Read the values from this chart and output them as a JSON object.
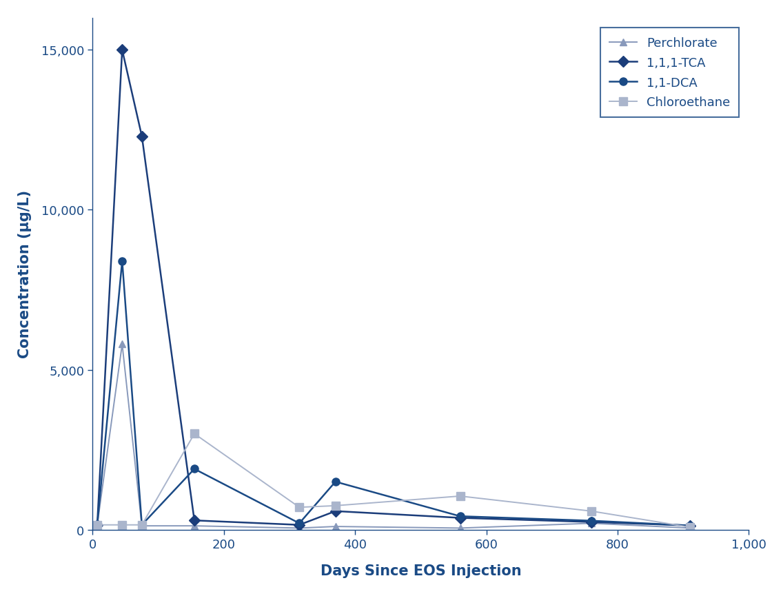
{
  "perchlorate": {
    "x": [
      7,
      45,
      75,
      155,
      315,
      370,
      560,
      760,
      910
    ],
    "y": [
      150,
      5800,
      120,
      120,
      50,
      100,
      50,
      200,
      50
    ],
    "color": "#8899bb",
    "marker": "^",
    "markersize": 7,
    "label": "Perchlorate",
    "linewidth": 1.4
  },
  "tca": {
    "x": [
      7,
      45,
      75,
      155,
      315,
      370,
      560,
      760,
      910
    ],
    "y": [
      150,
      15000,
      12300,
      290,
      150,
      580,
      370,
      240,
      130
    ],
    "color": "#1b3d7a",
    "marker": "D",
    "markersize": 8,
    "label": "1,1,1-TCA",
    "linewidth": 1.8
  },
  "dca": {
    "x": [
      7,
      45,
      75,
      155,
      315,
      370,
      560,
      760,
      910
    ],
    "y": [
      150,
      8400,
      150,
      1900,
      200,
      1500,
      420,
      280,
      130
    ],
    "color": "#1a4a85",
    "marker": "o",
    "markersize": 8,
    "label": "1,1-DCA",
    "linewidth": 1.8
  },
  "chloroethane": {
    "x": [
      7,
      45,
      75,
      155,
      315,
      370,
      560,
      760,
      910
    ],
    "y": [
      150,
      150,
      150,
      3000,
      700,
      750,
      1050,
      580,
      80
    ],
    "color": "#aab5cc",
    "marker": "s",
    "markersize": 8,
    "label": "Chloroethane",
    "linewidth": 1.4
  },
  "xlabel": "Days Since EOS Injection",
  "ylabel": "Concentration (μg/L)",
  "xlim": [
    0,
    1000
  ],
  "ylim": [
    0,
    16000
  ],
  "yticks": [
    0,
    5000,
    10000,
    15000
  ],
  "xticks": [
    0,
    200,
    400,
    600,
    800,
    1000
  ],
  "label_color": "#1a4a85",
  "tick_color": "#1a4a85",
  "spine_color": "#1a4a85",
  "background_color": "#ffffff",
  "legend_fontsize": 13,
  "axis_label_fontsize": 15,
  "tick_fontsize": 13
}
